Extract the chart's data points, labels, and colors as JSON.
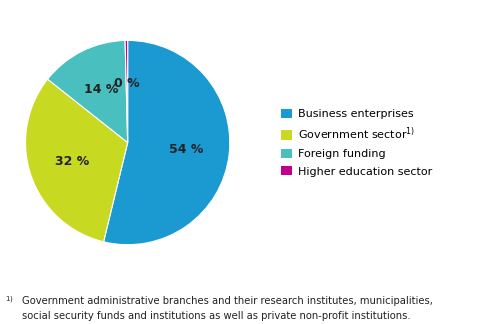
{
  "slices": [
    54,
    32,
    14,
    0.4
  ],
  "labels": [
    "54 %",
    "32 %",
    "14 %",
    "0 %"
  ],
  "colors": [
    "#1b9ad2",
    "#c8d922",
    "#4abfbf",
    "#c0008c"
  ],
  "legend_labels": [
    "Business enterprises",
    "Government sector",
    "Foreign funding",
    "Higher education sector"
  ],
  "startangle": 90,
  "label_fontsize": 9,
  "legend_fontsize": 8.0,
  "footnote_fontsize": 7.2,
  "footnote_line1": "Government administrative branches and their research institutes, municipalities,",
  "footnote_line2": "social security funds and institutions as well as private non-profit institutions."
}
